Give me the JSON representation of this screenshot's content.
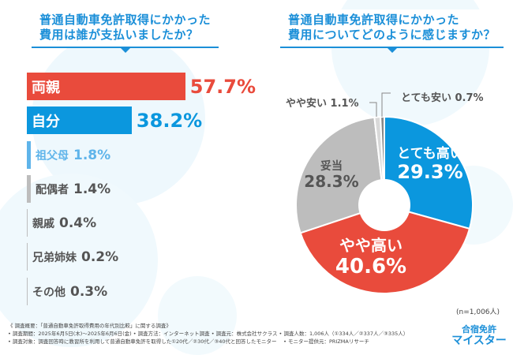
{
  "left": {
    "title_line1": "普通自動車免許取得にかかった",
    "title_line2": "費用は誰が支払いましたか？"
  },
  "right": {
    "title_line1": "普通自動車免許取得にかかった",
    "title_line2": "費用についてどのように感じますか？",
    "n_label": "(n=1,006人)"
  },
  "chart_data": [
    {
      "type": "bar",
      "orientation": "horizontal",
      "categories": [
        "両親",
        "自分",
        "祖父母",
        "配偶者",
        "親戚",
        "兄弟姉妹",
        "その他"
      ],
      "values": [
        57.7,
        38.2,
        1.8,
        1.4,
        0.4,
        0.2,
        0.3
      ],
      "labels": [
        "57.7%",
        "38.2%",
        "1.8%",
        "1.4%",
        "0.4%",
        "0.2%",
        "0.3%"
      ],
      "colors": [
        "#e94b3c",
        "#0b97de",
        "#5fb4ea",
        "#bdbdbd",
        "#bdbdbd",
        "#bdbdbd",
        "#bdbdbd"
      ],
      "value_colors": [
        "#e94b3c",
        "#0b97de",
        "#5fb4ea",
        "#555555",
        "#555555",
        "#555555",
        "#555555"
      ]
    },
    {
      "type": "pie",
      "donut": true,
      "categories": [
        "とても高い",
        "やや高い",
        "妥当",
        "やや安い",
        "とても安い"
      ],
      "values": [
        29.3,
        40.6,
        28.3,
        1.1,
        0.7
      ],
      "labels": [
        "29.3%",
        "40.6%",
        "28.3%",
        "1.1%",
        "0.7%"
      ],
      "colors": [
        "#0b97de",
        "#e94b3c",
        "#bdbdbd",
        "#d9d9d9",
        "#888888"
      ]
    }
  ],
  "footer": {
    "line1": "《 調査概要：「普通自動車免許取得費用の年代別比較」に関する調査》",
    "line2": "• 調査期間：2025年6月5日(木)〜2025年6月6日(金) • 調査方法：インターネット調査 • 調査元：株式会社サクラス • 調査人数：1,006人（①334人／②337人／③335人）",
    "line3": "• 調査対象：調査回答時に教習所を利用して普通自動車免許を取得した①20代／②30代／③40代と回答したモニター　 • モニター提供元：PRIZMAリサーチ"
  },
  "logo": {
    "line1": "合宿免許",
    "line2": "マイスター"
  }
}
